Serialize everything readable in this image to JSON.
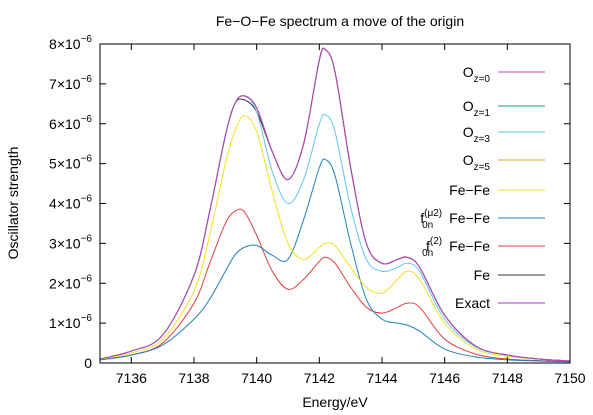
{
  "chart_data": {
    "type": "line",
    "title": "Fe−O−Fe spectrum a move of the origin",
    "xlabel": "Energy/eV",
    "ylabel": "Oscillator strength",
    "xlim": [
      7135,
      7150
    ],
    "ylim": [
      0,
      8e-06
    ],
    "x_ticks": [
      7136,
      7138,
      7140,
      7142,
      7144,
      7146,
      7148,
      7150
    ],
    "y_ticks": [
      0,
      1e-06,
      2e-06,
      3e-06,
      4e-06,
      5e-06,
      6e-06,
      7e-06,
      8e-06
    ],
    "y_tick_labels": [
      "0",
      "1×10",
      "2×10",
      "3×10",
      "4×10",
      "5×10",
      "6×10",
      "7×10",
      "8×10"
    ],
    "y_tick_exponent": "−6",
    "grid": false,
    "legend_position": "right",
    "x": [
      7135,
      7136,
      7137,
      7138,
      7138.5,
      7139,
      7139.3,
      7139.6,
      7140,
      7140.5,
      7141,
      7141.5,
      7142,
      7142.2,
      7142.5,
      7143,
      7143.5,
      7144,
      7144.5,
      7144.8,
      7145.2,
      7146,
      7147,
      7148,
      7149,
      7150
    ],
    "series": [
      {
        "name": "Oz=0",
        "legend_base": "O",
        "legend_sub": "z=0",
        "legend_sup": "",
        "legend_tail": "",
        "color": "#c040c0",
        "values": [
          1e-07,
          3e-07,
          7e-07,
          2.2e-06,
          3.8e-06,
          5.7e-06,
          6.5e-06,
          6.7e-06,
          6.4e-06,
          5.3e-06,
          4.6e-06,
          5.5e-06,
          7.6e-06,
          7.85e-06,
          7.3e-06,
          4.9e-06,
          3e-06,
          2.5e-06,
          2.6e-06,
          2.65e-06,
          2.4e-06,
          1.2e-06,
          4.2e-07,
          2e-07,
          1e-07,
          5e-08
        ]
      },
      {
        "name": "Oz=1",
        "legend_base": "O",
        "legend_sub": "z=1",
        "legend_sup": "",
        "legend_tail": "",
        "color": "#20a080",
        "values": [
          1e-07,
          3e-07,
          7e-07,
          2.2e-06,
          3.8e-06,
          5.7e-06,
          6.5e-06,
          6.7e-06,
          6.4e-06,
          5.3e-06,
          4.6e-06,
          5.5e-06,
          7.6e-06,
          7.85e-06,
          7.3e-06,
          4.9e-06,
          3e-06,
          2.5e-06,
          2.6e-06,
          2.65e-06,
          2.4e-06,
          1.2e-06,
          4.2e-07,
          2e-07,
          1e-07,
          5e-08
        ]
      },
      {
        "name": "Oz=3",
        "legend_base": "O",
        "legend_sub": "z=3",
        "legend_sup": "",
        "legend_tail": "",
        "color": "#60c8f0",
        "values": [
          1e-07,
          3e-07,
          7e-07,
          2.2e-06,
          3.8e-06,
          5.7e-06,
          6.5e-06,
          6.7e-06,
          6.3e-06,
          4.8e-06,
          4e-06,
          4.6e-06,
          6e-06,
          6.22e-06,
          5.8e-06,
          3.9e-06,
          2.6e-06,
          2.3e-06,
          2.4e-06,
          2.5e-06,
          2.3e-06,
          1.1e-06,
          4e-07,
          2e-07,
          1e-07,
          5e-08
        ]
      },
      {
        "name": "Oz=5",
        "legend_base": "O",
        "legend_sub": "z=5",
        "legend_sup": "",
        "legend_tail": "",
        "color": "#e0a020",
        "values": [
          1e-07,
          3e-07,
          7e-07,
          2.2e-06,
          3.8e-06,
          5.7e-06,
          6.5e-06,
          6.7e-06,
          6.4e-06,
          5.3e-06,
          4.6e-06,
          5.5e-06,
          7.6e-06,
          7.85e-06,
          7.3e-06,
          4.9e-06,
          3e-06,
          2.5e-06,
          2.6e-06,
          2.65e-06,
          2.4e-06,
          1.2e-06,
          4.2e-07,
          2e-07,
          1e-07,
          5e-08
        ]
      },
      {
        "name": "Fe−Fe",
        "legend_base": "Fe−Fe",
        "legend_sub": "",
        "legend_sup": "",
        "legend_tail": "",
        "color": "#f0e020",
        "values": [
          1e-07,
          2.5e-07,
          6e-07,
          1.8e-06,
          3.2e-06,
          5e-06,
          5.8e-06,
          6.2e-06,
          5.8e-06,
          4.3e-06,
          3e-06,
          2.6e-06,
          2.9e-06,
          3e-06,
          2.95e-06,
          2.4e-06,
          1.9e-06,
          1.75e-06,
          2.1e-06,
          2.3e-06,
          2.1e-06,
          1e-06,
          3.5e-07,
          1.7e-07,
          1e-07,
          5e-08
        ]
      },
      {
        "name": "f0n(μ2) Fe−Fe",
        "legend_base": "f",
        "legend_sub": "0n",
        "legend_sup": "(μ2)",
        "legend_tail": " Fe−Fe",
        "color": "#2080c0",
        "values": [
          8e-08,
          2e-07,
          4.5e-07,
          1.1e-06,
          1.6e-06,
          2.3e-06,
          2.7e-06,
          2.9e-06,
          2.95e-06,
          2.7e-06,
          2.6e-06,
          3.6e-06,
          4.9e-06,
          5.1e-06,
          4.7e-06,
          3e-06,
          1.6e-06,
          1.1e-06,
          1e-06,
          9.5e-07,
          8e-07,
          3.5e-07,
          1.5e-07,
          8e-08,
          5e-08,
          3e-08
        ]
      },
      {
        "name": "f0n(2) Fe−Fe",
        "legend_base": "f",
        "legend_sub": "0n",
        "legend_sup": "(2)",
        "legend_tail": " Fe−Fe",
        "color": "#e04040",
        "values": [
          8e-08,
          2e-07,
          5e-07,
          1.5e-06,
          2.5e-06,
          3.5e-06,
          3.8e-06,
          3.8e-06,
          3.2e-06,
          2.3e-06,
          1.85e-06,
          2.1e-06,
          2.55e-06,
          2.65e-06,
          2.5e-06,
          1.9e-06,
          1.4e-06,
          1.25e-06,
          1.4e-06,
          1.5e-06,
          1.4e-06,
          6e-07,
          2.2e-07,
          1e-07,
          6e-08,
          3e-08
        ]
      },
      {
        "name": "Fe",
        "legend_base": "Fe",
        "legend_sub": "",
        "legend_sup": "",
        "legend_tail": "",
        "color": "#303030",
        "values": [
          1e-07,
          3e-07,
          7e-07,
          2.2e-06,
          3.8e-06,
          5.7e-06,
          6.5e-06,
          6.6e-06,
          6.3e-06,
          5.3e-06,
          4.6e-06,
          5.5e-06,
          7.6e-06,
          7.85e-06,
          7.3e-06,
          4.9e-06,
          3e-06,
          2.5e-06,
          2.6e-06,
          2.65e-06,
          2.4e-06,
          1.2e-06,
          4.2e-07,
          2e-07,
          1e-07,
          5e-08
        ]
      },
      {
        "name": "Exact",
        "legend_base": "Exact",
        "legend_sub": "",
        "legend_sup": "",
        "legend_tail": "",
        "color": "#b030d0",
        "values": [
          1e-07,
          3e-07,
          7e-07,
          2.2e-06,
          3.8e-06,
          5.7e-06,
          6.5e-06,
          6.7e-06,
          6.4e-06,
          5.3e-06,
          4.6e-06,
          5.5e-06,
          7.6e-06,
          7.85e-06,
          7.3e-06,
          4.9e-06,
          3e-06,
          2.5e-06,
          2.6e-06,
          2.65e-06,
          2.4e-06,
          1.2e-06,
          4.2e-07,
          2e-07,
          1e-07,
          5e-08
        ]
      }
    ]
  }
}
